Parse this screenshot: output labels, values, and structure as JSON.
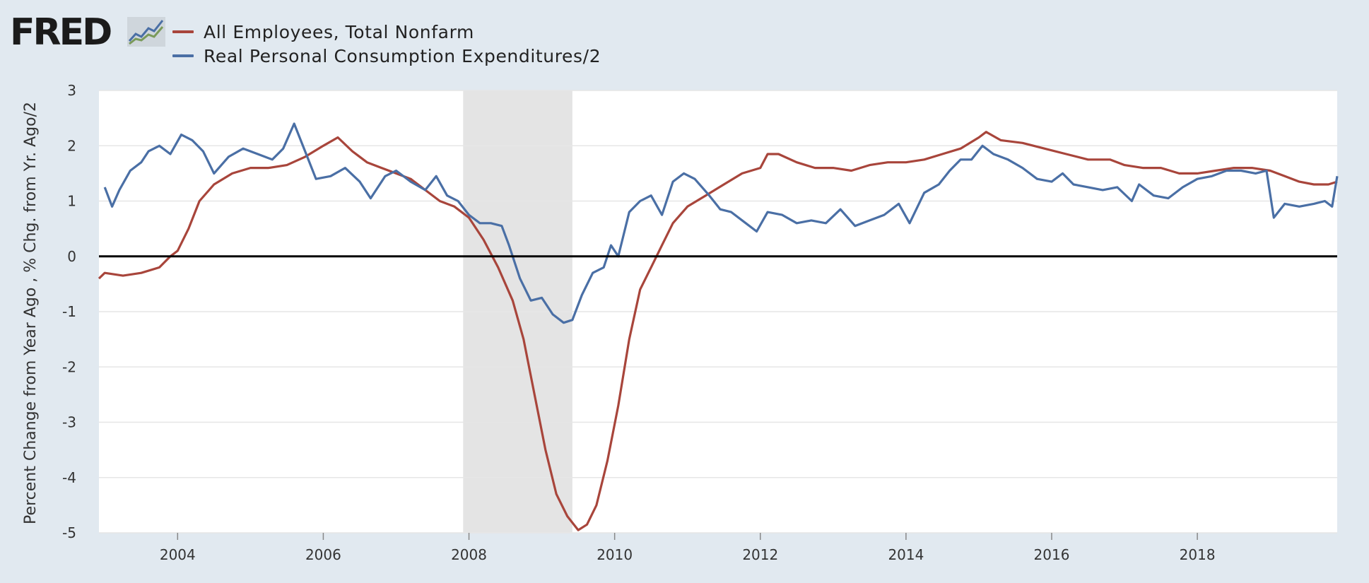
{
  "brand": {
    "logo_text": "FRED"
  },
  "colors": {
    "employees": "#a8453b",
    "pce": "#4a6fa5",
    "recession": "#e4e4e4",
    "zero_line": "#000000",
    "plot_bg": "#ffffff",
    "grid": "#e6e6e6"
  },
  "chart_data": {
    "type": "line",
    "title": "",
    "ylabel": "Percent Change from Year Ago , % Chg. from Yr. Ago/2",
    "xlabel": "",
    "xlim": [
      2002.92,
      2019.92
    ],
    "ylim": [
      -5,
      3
    ],
    "x_ticks": [
      {
        "value": 2004,
        "label": "2004"
      },
      {
        "value": 2006,
        "label": "2006"
      },
      {
        "value": 2008,
        "label": "2008"
      },
      {
        "value": 2010,
        "label": "2010"
      },
      {
        "value": 2012,
        "label": "2012"
      },
      {
        "value": 2014,
        "label": "2014"
      },
      {
        "value": 2016,
        "label": "2016"
      },
      {
        "value": 2018,
        "label": "2018"
      }
    ],
    "y_ticks": [
      {
        "value": 3,
        "label": "3"
      },
      {
        "value": 2,
        "label": "2"
      },
      {
        "value": 1,
        "label": "1"
      },
      {
        "value": 0,
        "label": "0"
      },
      {
        "value": -1,
        "label": "-1"
      },
      {
        "value": -2,
        "label": "-2"
      },
      {
        "value": -3,
        "label": "-3"
      },
      {
        "value": -4,
        "label": "-4"
      },
      {
        "value": -5,
        "label": "-5"
      }
    ],
    "grid": true,
    "legend_position": "top-left",
    "shaded_regions": [
      {
        "x0": 2007.92,
        "x1": 2009.42
      }
    ],
    "series": [
      {
        "name": "All Employees, Total Nonfarm",
        "color": "#a8453b",
        "points": [
          [
            2002.92,
            -0.4
          ],
          [
            2003.0,
            -0.3
          ],
          [
            2003.25,
            -0.35
          ],
          [
            2003.5,
            -0.3
          ],
          [
            2003.75,
            -0.2
          ],
          [
            2003.9,
            0.0
          ],
          [
            2004.0,
            0.1
          ],
          [
            2004.15,
            0.5
          ],
          [
            2004.3,
            1.0
          ],
          [
            2004.5,
            1.3
          ],
          [
            2004.75,
            1.5
          ],
          [
            2005.0,
            1.6
          ],
          [
            2005.25,
            1.6
          ],
          [
            2005.5,
            1.65
          ],
          [
            2005.75,
            1.8
          ],
          [
            2006.0,
            2.0
          ],
          [
            2006.2,
            2.15
          ],
          [
            2006.4,
            1.9
          ],
          [
            2006.6,
            1.7
          ],
          [
            2006.8,
            1.6
          ],
          [
            2007.0,
            1.5
          ],
          [
            2007.2,
            1.4
          ],
          [
            2007.4,
            1.2
          ],
          [
            2007.6,
            1.0
          ],
          [
            2007.8,
            0.9
          ],
          [
            2008.0,
            0.7
          ],
          [
            2008.2,
            0.3
          ],
          [
            2008.4,
            -0.2
          ],
          [
            2008.6,
            -0.8
          ],
          [
            2008.75,
            -1.5
          ],
          [
            2008.9,
            -2.5
          ],
          [
            2009.05,
            -3.5
          ],
          [
            2009.2,
            -4.3
          ],
          [
            2009.35,
            -4.7
          ],
          [
            2009.5,
            -4.95
          ],
          [
            2009.62,
            -4.85
          ],
          [
            2009.75,
            -4.5
          ],
          [
            2009.9,
            -3.7
          ],
          [
            2010.05,
            -2.7
          ],
          [
            2010.2,
            -1.5
          ],
          [
            2010.35,
            -0.6
          ],
          [
            2010.5,
            -0.2
          ],
          [
            2010.65,
            0.2
          ],
          [
            2010.8,
            0.6
          ],
          [
            2011.0,
            0.9
          ],
          [
            2011.25,
            1.1
          ],
          [
            2011.5,
            1.3
          ],
          [
            2011.75,
            1.5
          ],
          [
            2012.0,
            1.6
          ],
          [
            2012.1,
            1.85
          ],
          [
            2012.25,
            1.85
          ],
          [
            2012.5,
            1.7
          ],
          [
            2012.75,
            1.6
          ],
          [
            2013.0,
            1.6
          ],
          [
            2013.25,
            1.55
          ],
          [
            2013.5,
            1.65
          ],
          [
            2013.75,
            1.7
          ],
          [
            2014.0,
            1.7
          ],
          [
            2014.25,
            1.75
          ],
          [
            2014.5,
            1.85
          ],
          [
            2014.75,
            1.95
          ],
          [
            2015.0,
            2.15
          ],
          [
            2015.1,
            2.25
          ],
          [
            2015.3,
            2.1
          ],
          [
            2015.6,
            2.05
          ],
          [
            2015.9,
            1.95
          ],
          [
            2016.2,
            1.85
          ],
          [
            2016.5,
            1.75
          ],
          [
            2016.8,
            1.75
          ],
          [
            2017.0,
            1.65
          ],
          [
            2017.25,
            1.6
          ],
          [
            2017.5,
            1.6
          ],
          [
            2017.75,
            1.5
          ],
          [
            2018.0,
            1.5
          ],
          [
            2018.25,
            1.55
          ],
          [
            2018.5,
            1.6
          ],
          [
            2018.75,
            1.6
          ],
          [
            2019.0,
            1.55
          ],
          [
            2019.2,
            1.45
          ],
          [
            2019.4,
            1.35
          ],
          [
            2019.6,
            1.3
          ],
          [
            2019.8,
            1.3
          ],
          [
            2019.92,
            1.35
          ]
        ]
      },
      {
        "name": "Real Personal Consumption Expenditures/2",
        "color": "#4a6fa5",
        "points": [
          [
            2003.0,
            1.25
          ],
          [
            2003.1,
            0.9
          ],
          [
            2003.2,
            1.2
          ],
          [
            2003.35,
            1.55
          ],
          [
            2003.5,
            1.7
          ],
          [
            2003.6,
            1.9
          ],
          [
            2003.75,
            2.0
          ],
          [
            2003.9,
            1.85
          ],
          [
            2004.05,
            2.2
          ],
          [
            2004.2,
            2.1
          ],
          [
            2004.35,
            1.9
          ],
          [
            2004.5,
            1.5
          ],
          [
            2004.7,
            1.8
          ],
          [
            2004.9,
            1.95
          ],
          [
            2005.1,
            1.85
          ],
          [
            2005.3,
            1.75
          ],
          [
            2005.45,
            1.95
          ],
          [
            2005.6,
            2.4
          ],
          [
            2005.75,
            1.9
          ],
          [
            2005.9,
            1.4
          ],
          [
            2006.1,
            1.45
          ],
          [
            2006.3,
            1.6
          ],
          [
            2006.5,
            1.35
          ],
          [
            2006.65,
            1.05
          ],
          [
            2006.85,
            1.45
          ],
          [
            2007.0,
            1.55
          ],
          [
            2007.2,
            1.35
          ],
          [
            2007.4,
            1.2
          ],
          [
            2007.55,
            1.45
          ],
          [
            2007.7,
            1.1
          ],
          [
            2007.85,
            1.0
          ],
          [
            2008.0,
            0.75
          ],
          [
            2008.15,
            0.6
          ],
          [
            2008.3,
            0.6
          ],
          [
            2008.45,
            0.55
          ],
          [
            2008.55,
            0.2
          ],
          [
            2008.7,
            -0.4
          ],
          [
            2008.85,
            -0.8
          ],
          [
            2009.0,
            -0.75
          ],
          [
            2009.15,
            -1.05
          ],
          [
            2009.3,
            -1.2
          ],
          [
            2009.42,
            -1.15
          ],
          [
            2009.55,
            -0.7
          ],
          [
            2009.7,
            -0.3
          ],
          [
            2009.85,
            -0.2
          ],
          [
            2009.95,
            0.2
          ],
          [
            2010.05,
            0.0
          ],
          [
            2010.2,
            0.8
          ],
          [
            2010.35,
            1.0
          ],
          [
            2010.5,
            1.1
          ],
          [
            2010.65,
            0.75
          ],
          [
            2010.8,
            1.35
          ],
          [
            2010.95,
            1.5
          ],
          [
            2011.1,
            1.4
          ],
          [
            2011.3,
            1.1
          ],
          [
            2011.45,
            0.85
          ],
          [
            2011.6,
            0.8
          ],
          [
            2011.8,
            0.6
          ],
          [
            2011.95,
            0.45
          ],
          [
            2012.1,
            0.8
          ],
          [
            2012.3,
            0.75
          ],
          [
            2012.5,
            0.6
          ],
          [
            2012.7,
            0.65
          ],
          [
            2012.9,
            0.6
          ],
          [
            2013.1,
            0.85
          ],
          [
            2013.3,
            0.55
          ],
          [
            2013.5,
            0.65
          ],
          [
            2013.7,
            0.75
          ],
          [
            2013.9,
            0.95
          ],
          [
            2014.05,
            0.6
          ],
          [
            2014.25,
            1.15
          ],
          [
            2014.45,
            1.3
          ],
          [
            2014.6,
            1.55
          ],
          [
            2014.75,
            1.75
          ],
          [
            2014.9,
            1.75
          ],
          [
            2015.05,
            2.0
          ],
          [
            2015.2,
            1.85
          ],
          [
            2015.4,
            1.75
          ],
          [
            2015.6,
            1.6
          ],
          [
            2015.8,
            1.4
          ],
          [
            2016.0,
            1.35
          ],
          [
            2016.15,
            1.5
          ],
          [
            2016.3,
            1.3
          ],
          [
            2016.5,
            1.25
          ],
          [
            2016.7,
            1.2
          ],
          [
            2016.9,
            1.25
          ],
          [
            2017.1,
            1.0
          ],
          [
            2017.2,
            1.3
          ],
          [
            2017.4,
            1.1
          ],
          [
            2017.6,
            1.05
          ],
          [
            2017.8,
            1.25
          ],
          [
            2018.0,
            1.4
          ],
          [
            2018.2,
            1.45
          ],
          [
            2018.4,
            1.55
          ],
          [
            2018.6,
            1.55
          ],
          [
            2018.8,
            1.5
          ],
          [
            2018.95,
            1.55
          ],
          [
            2019.05,
            0.7
          ],
          [
            2019.2,
            0.95
          ],
          [
            2019.4,
            0.9
          ],
          [
            2019.6,
            0.95
          ],
          [
            2019.75,
            1.0
          ],
          [
            2019.85,
            0.9
          ],
          [
            2019.92,
            1.45
          ]
        ]
      }
    ]
  }
}
